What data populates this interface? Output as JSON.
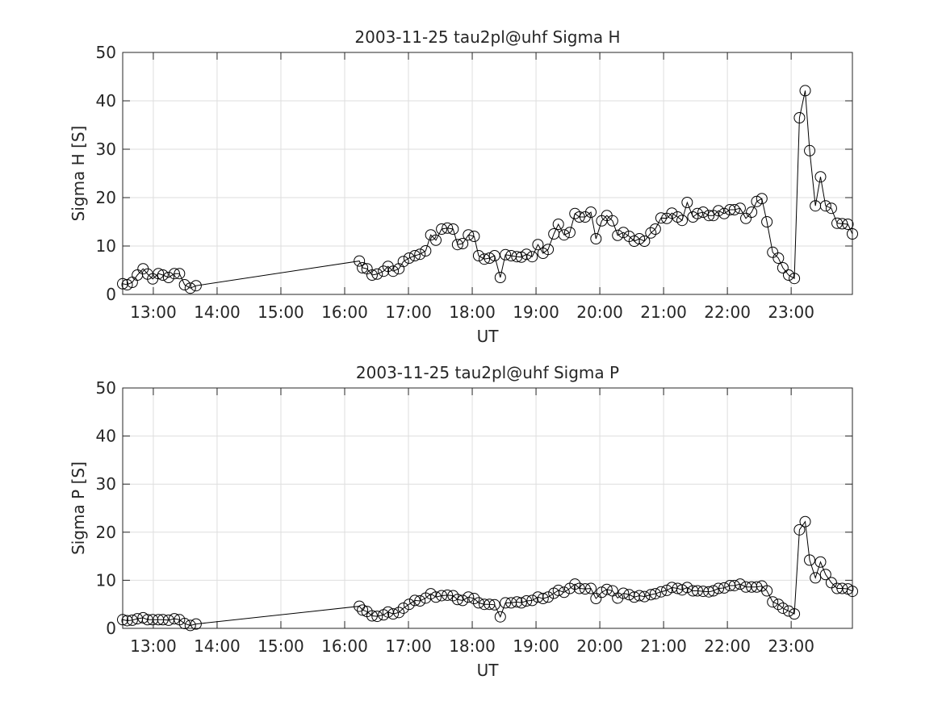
{
  "chart_data": [
    {
      "type": "line",
      "title": "2003-11-25  tau2pl@uhf Sigma H",
      "xlabel": "UT",
      "ylabel": "Sigma H [S]",
      "color": "#000000",
      "marker": "circle",
      "grid": true,
      "xlim": [
        12.52,
        23.96
      ],
      "xticks": [
        {
          "value": 13,
          "label": "13:00"
        },
        {
          "value": 14,
          "label": "14:00"
        },
        {
          "value": 15,
          "label": "15:00"
        },
        {
          "value": 16,
          "label": "16:00"
        },
        {
          "value": 17,
          "label": "17:00"
        },
        {
          "value": 18,
          "label": "18:00"
        },
        {
          "value": 19,
          "label": "19:00"
        },
        {
          "value": 20,
          "label": "20:00"
        },
        {
          "value": 21,
          "label": "21:00"
        },
        {
          "value": 22,
          "label": "22:00"
        },
        {
          "value": 23,
          "label": "23:00"
        }
      ],
      "ylim": [
        0,
        50
      ],
      "yticks": [
        0,
        10,
        20,
        30,
        40,
        50
      ],
      "x": [
        12.52,
        12.59,
        12.67,
        12.75,
        12.84,
        12.91,
        12.99,
        13.08,
        13.15,
        13.24,
        13.33,
        13.41,
        13.49,
        13.58,
        13.67,
        16.23,
        16.28,
        16.35,
        16.43,
        16.51,
        16.61,
        16.68,
        16.76,
        16.85,
        16.92,
        17.01,
        17.1,
        17.18,
        17.27,
        17.35,
        17.43,
        17.52,
        17.61,
        17.7,
        17.77,
        17.85,
        17.94,
        18.03,
        18.1,
        18.19,
        18.27,
        18.35,
        18.44,
        18.52,
        18.61,
        18.7,
        18.77,
        18.85,
        18.94,
        19.03,
        19.11,
        19.19,
        19.28,
        19.35,
        19.44,
        19.53,
        19.61,
        19.68,
        19.77,
        19.86,
        19.94,
        20.03,
        20.11,
        20.2,
        20.28,
        20.37,
        20.46,
        20.54,
        20.62,
        20.7,
        20.8,
        20.87,
        20.96,
        21.05,
        21.13,
        21.22,
        21.29,
        21.37,
        21.46,
        21.53,
        21.62,
        21.71,
        21.78,
        21.86,
        21.95,
        22.04,
        22.11,
        22.2,
        22.29,
        22.38,
        22.46,
        22.54,
        22.62,
        22.71,
        22.8,
        22.87,
        22.96,
        23.05,
        23.13,
        23.22,
        23.29,
        23.38,
        23.46,
        23.54,
        23.63,
        23.72,
        23.8,
        23.89,
        23.96
      ],
      "values": [
        2.2,
        2,
        2.5,
        4,
        5.3,
        4.2,
        3.2,
        4.3,
        4,
        3.5,
        4.3,
        4.3,
        2,
        1.3,
        1.8,
        6.9,
        5.5,
        5.3,
        4,
        4.2,
        4.8,
        5.8,
        4.8,
        5.3,
        6.8,
        7.5,
        8,
        8.3,
        9,
        12.3,
        11.2,
        13.5,
        13.7,
        13.5,
        10.3,
        10.5,
        12.3,
        12,
        8,
        7.3,
        7.5,
        8,
        3.5,
        8.2,
        8,
        7.8,
        7.7,
        8.3,
        7.8,
        10.3,
        8.5,
        9.3,
        12.5,
        14.5,
        12.3,
        12.8,
        16.7,
        16,
        16,
        17,
        11.5,
        15.2,
        16.3,
        15.2,
        12.2,
        12.8,
        12,
        11,
        11.5,
        11,
        12.7,
        13.5,
        15.8,
        15.7,
        16.8,
        16,
        15.3,
        19,
        16,
        16.7,
        17,
        16.3,
        16.3,
        17.3,
        16.7,
        17.5,
        17.5,
        17.8,
        15.7,
        17,
        19.2,
        19.8,
        15,
        8.7,
        7.5,
        5.5,
        4,
        3.3,
        36.5,
        42.1,
        29.7,
        18.3,
        24.3,
        18.3,
        17.8,
        14.7,
        14.6,
        14.5,
        12.5
      ]
    },
    {
      "type": "line",
      "title": "2003-11-25  tau2pl@uhf Sigma P",
      "xlabel": "UT",
      "ylabel": "Sigma P [S]",
      "color": "#000000",
      "marker": "circle",
      "grid": true,
      "xlim": [
        12.52,
        23.96
      ],
      "xticks": [
        {
          "value": 13,
          "label": "13:00"
        },
        {
          "value": 14,
          "label": "14:00"
        },
        {
          "value": 15,
          "label": "15:00"
        },
        {
          "value": 16,
          "label": "16:00"
        },
        {
          "value": 17,
          "label": "17:00"
        },
        {
          "value": 18,
          "label": "18:00"
        },
        {
          "value": 19,
          "label": "19:00"
        },
        {
          "value": 20,
          "label": "20:00"
        },
        {
          "value": 21,
          "label": "21:00"
        },
        {
          "value": 22,
          "label": "22:00"
        },
        {
          "value": 23,
          "label": "23:00"
        }
      ],
      "ylim": [
        0,
        50
      ],
      "yticks": [
        0,
        10,
        20,
        30,
        40,
        50
      ],
      "x": [
        12.52,
        12.59,
        12.67,
        12.75,
        12.84,
        12.91,
        12.99,
        13.08,
        13.15,
        13.24,
        13.33,
        13.41,
        13.49,
        13.58,
        13.67,
        16.23,
        16.28,
        16.35,
        16.43,
        16.51,
        16.61,
        16.68,
        16.76,
        16.85,
        16.92,
        17.01,
        17.1,
        17.18,
        17.27,
        17.35,
        17.43,
        17.52,
        17.61,
        17.7,
        17.77,
        17.85,
        17.94,
        18.03,
        18.1,
        18.19,
        18.27,
        18.35,
        18.44,
        18.52,
        18.61,
        18.7,
        18.77,
        18.85,
        18.94,
        19.03,
        19.11,
        19.19,
        19.28,
        19.35,
        19.44,
        19.53,
        19.61,
        19.68,
        19.77,
        19.86,
        19.94,
        20.03,
        20.11,
        20.2,
        20.28,
        20.37,
        20.46,
        20.54,
        20.62,
        20.7,
        20.8,
        20.87,
        20.96,
        21.05,
        21.13,
        21.22,
        21.29,
        21.37,
        21.46,
        21.53,
        21.62,
        21.71,
        21.78,
        21.86,
        21.95,
        22.04,
        22.11,
        22.2,
        22.29,
        22.38,
        22.46,
        22.54,
        22.62,
        22.71,
        22.8,
        22.87,
        22.96,
        23.05,
        23.13,
        23.22,
        23.29,
        23.38,
        23.46,
        23.54,
        23.63,
        23.72,
        23.8,
        23.89,
        23.96
      ],
      "values": [
        1.8,
        1.6,
        1.7,
        2,
        2.2,
        1.8,
        1.8,
        1.8,
        1.8,
        1.7,
        2,
        1.8,
        1,
        0.6,
        0.9,
        4.6,
        3.8,
        3.5,
        2.6,
        2.5,
        2.8,
        3.4,
        3,
        3.3,
        4.2,
        5,
        5.8,
        5.7,
        6.3,
        7.2,
        6.5,
        6.8,
        6.9,
        6.8,
        6,
        5.8,
        6.5,
        6.2,
        5.3,
        5,
        5,
        4.9,
        2.4,
        5.3,
        5.3,
        5.5,
        5.3,
        5.7,
        5.8,
        6.5,
        6.2,
        6.5,
        7.3,
        7.9,
        7.5,
        8.3,
        9.2,
        8.3,
        8.2,
        8.3,
        6.2,
        7.5,
        8.1,
        7.8,
        6.3,
        7.3,
        7,
        6.5,
        6.8,
        6.6,
        7,
        7.2,
        7.6,
        7.9,
        8.5,
        8.3,
        8,
        8.5,
        7.8,
        7.8,
        7.7,
        7.6,
        7.8,
        8.3,
        8.4,
        8.9,
        8.9,
        9.2,
        8.6,
        8.6,
        8.6,
        8.8,
        7.8,
        5.5,
        5,
        4.2,
        3.6,
        3,
        20.5,
        22.2,
        14.2,
        10.5,
        13.8,
        11.2,
        9.5,
        8.3,
        8.3,
        8.2,
        7.7
      ]
    }
  ]
}
